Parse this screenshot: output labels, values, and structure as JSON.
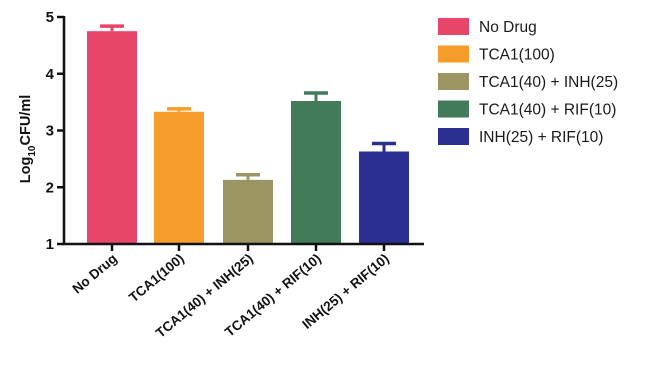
{
  "chart_data": {
    "type": "bar",
    "title": "",
    "xlabel": "",
    "ylabel": "Log10CFU/ml",
    "ylabel_parts": {
      "prefix": "Log",
      "subscript": "10",
      "suffix": "CFU/ml"
    },
    "ylim": [
      1,
      5
    ],
    "yticks": [
      "1",
      "2",
      "3",
      "4",
      "5"
    ],
    "categories": [
      "No Drug",
      "TCA1(100)",
      "TCA1(40) + INH(25)",
      "TCA1(40) + RIF(10)",
      "INH(25) + RIF(10)"
    ],
    "values": [
      4.75,
      3.33,
      2.13,
      3.52,
      2.63
    ],
    "error_upper": [
      0.09,
      0.05,
      0.09,
      0.14,
      0.14
    ],
    "colors": [
      "#E8456B",
      "#F59C2A",
      "#9A9561",
      "#417B5A",
      "#2C2F92"
    ],
    "grid": false,
    "error_bars": true,
    "legend": {
      "placement": "right",
      "entries": [
        "No Drug",
        "TCA1(100)",
        "TCA1(40) + INH(25)",
        "TCA1(40) + RIF(10)",
        "INH(25) + RIF(10)"
      ]
    }
  }
}
